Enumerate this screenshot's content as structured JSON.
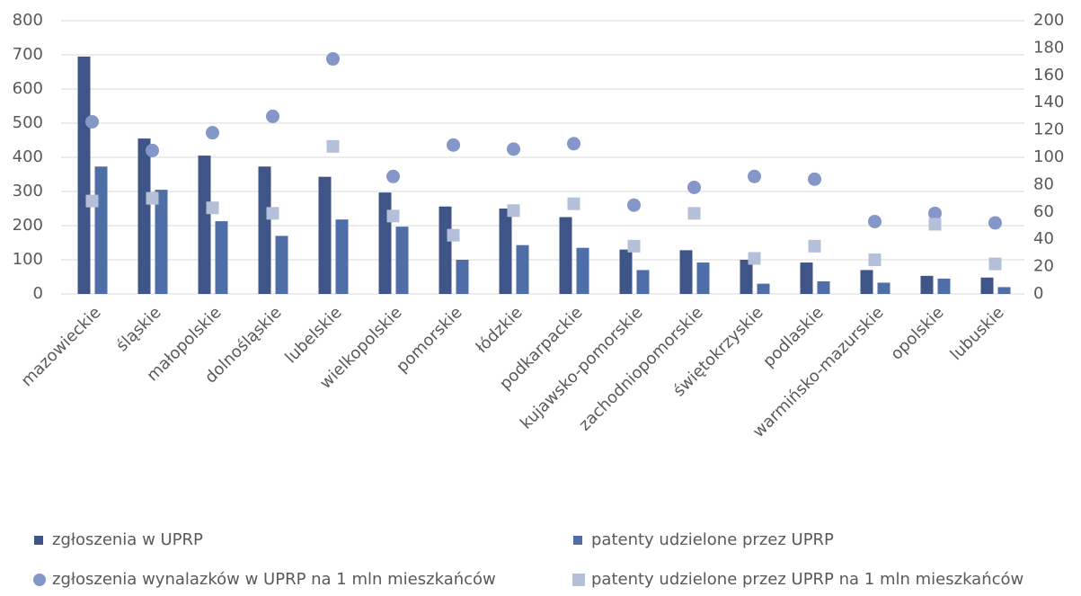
{
  "chart_data": {
    "type": "bar",
    "categories": [
      "mazowieckie",
      "śląskie",
      "małopolskie",
      "dolnośląskie",
      "lubelskie",
      "wielkopolskie",
      "pomorskie",
      "łódzkie",
      "podkarpackie",
      "kujawsko-pomorskie",
      "zachodniopomorskie",
      "świętokrzyskie",
      "podlaskie",
      "warmińsko-mazurskie",
      "opolskie",
      "lubuskie"
    ],
    "series": [
      {
        "name": "zgłoszenia w UPRP",
        "color": "#3f5587",
        "kind": "bar",
        "values": [
          695,
          455,
          405,
          373,
          343,
          297,
          256,
          250,
          225,
          130,
          128,
          100,
          92,
          70,
          53,
          48
        ]
      },
      {
        "name": "patenty udzielone przez UPRP",
        "color": "#4f6ea8",
        "kind": "bar",
        "values": [
          373,
          305,
          213,
          170,
          218,
          197,
          100,
          143,
          135,
          70,
          92,
          30,
          37,
          33,
          45,
          20
        ]
      },
      {
        "name": "zgłoszenia wynalazków w UPRP na 1 mln mieszkańców",
        "color": "#8497c8",
        "kind": "circle",
        "axis": "y2",
        "values": [
          126,
          105,
          118,
          130,
          172,
          86,
          109,
          106,
          110,
          65,
          78,
          86,
          84,
          53,
          59,
          52
        ]
      },
      {
        "name": "patenty udzielone przez UPRP  na 1 mln mieszkańców",
        "color": "#b4bfd9",
        "kind": "square",
        "axis": "y2",
        "values": [
          68,
          70,
          63,
          59,
          108,
          57,
          43,
          61,
          66,
          35,
          59,
          26,
          35,
          25,
          51,
          22
        ]
      }
    ],
    "ylim": [
      0,
      800
    ],
    "yticks": [
      0,
      100,
      200,
      300,
      400,
      500,
      600,
      700,
      800
    ],
    "y2lim": [
      0,
      200
    ],
    "y2ticks": [
      0,
      20,
      40,
      60,
      80,
      100,
      120,
      140,
      160,
      180,
      200
    ],
    "grid": true
  }
}
